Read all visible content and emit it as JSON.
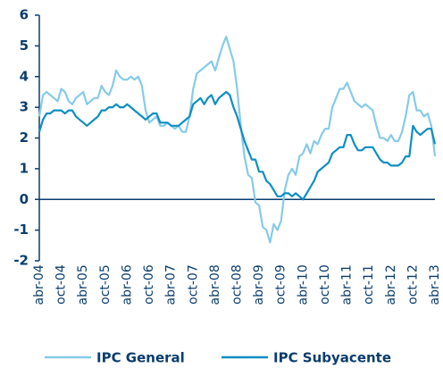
{
  "chart_data": {
    "type": "line",
    "categories": [
      "abr-04",
      null,
      null,
      null,
      null,
      null,
      "oct-04",
      null,
      null,
      null,
      null,
      null,
      "abr-05",
      null,
      null,
      null,
      null,
      null,
      "oct-05",
      null,
      null,
      null,
      null,
      null,
      "abr-06",
      null,
      null,
      null,
      null,
      null,
      "oct-06",
      null,
      null,
      null,
      null,
      null,
      "abr-07",
      null,
      null,
      null,
      null,
      null,
      "oct-07",
      null,
      null,
      null,
      null,
      null,
      "abr-08",
      null,
      null,
      null,
      null,
      null,
      "oct-08",
      null,
      null,
      null,
      null,
      null,
      "abr-09",
      null,
      null,
      null,
      null,
      null,
      "oct-09",
      null,
      null,
      null,
      null,
      null,
      "abr-10",
      null,
      null,
      null,
      null,
      null,
      "oct-10",
      null,
      null,
      null,
      null,
      null,
      "abr-11",
      null,
      null,
      null,
      null,
      null,
      "oct-11",
      null,
      null,
      null,
      null,
      null,
      "abr-12",
      null,
      null,
      null,
      null,
      null,
      "oct-12",
      null,
      null,
      null,
      null,
      null,
      "abr-13"
    ],
    "series": [
      {
        "name": "IPC General",
        "color": "#86cbe8",
        "values": [
          2.7,
          3.4,
          3.5,
          3.4,
          3.3,
          3.2,
          3.6,
          3.5,
          3.2,
          3.1,
          3.3,
          3.4,
          3.5,
          3.1,
          3.2,
          3.3,
          3.3,
          3.7,
          3.5,
          3.4,
          3.7,
          4.2,
          4.0,
          3.9,
          3.9,
          4.0,
          3.9,
          4.0,
          3.7,
          2.9,
          2.5,
          2.6,
          2.7,
          2.4,
          2.4,
          2.5,
          2.4,
          2.3,
          2.4,
          2.2,
          2.2,
          2.7,
          3.6,
          4.1,
          4.2,
          4.3,
          4.4,
          4.5,
          4.2,
          4.6,
          5.0,
          5.3,
          4.9,
          4.5,
          3.6,
          2.4,
          1.4,
          0.8,
          0.7,
          -0.1,
          -0.2,
          -0.9,
          -1.0,
          -1.4,
          -0.8,
          -1.0,
          -0.7,
          0.3,
          0.8,
          1.0,
          0.8,
          1.4,
          1.5,
          1.8,
          1.5,
          1.9,
          1.8,
          2.1,
          2.3,
          2.3,
          3.0,
          3.3,
          3.6,
          3.6,
          3.8,
          3.5,
          3.2,
          3.1,
          3.0,
          3.1,
          3.0,
          2.9,
          2.4,
          2.0,
          2.0,
          1.9,
          2.1,
          1.9,
          1.9,
          2.2,
          2.7,
          3.4,
          3.5,
          2.9,
          2.9,
          2.7,
          2.8,
          2.4,
          1.4
        ]
      },
      {
        "name": "IPC Subyacente",
        "color": "#0d8fc2",
        "values": [
          2.2,
          2.6,
          2.8,
          2.8,
          2.9,
          2.9,
          2.9,
          2.8,
          2.9,
          2.9,
          2.7,
          2.6,
          2.5,
          2.4,
          2.5,
          2.6,
          2.7,
          2.9,
          2.9,
          3.0,
          3.0,
          3.1,
          3.0,
          3.0,
          3.1,
          3.0,
          2.9,
          2.8,
          2.7,
          2.6,
          2.7,
          2.8,
          2.8,
          2.5,
          2.5,
          2.5,
          2.4,
          2.4,
          2.4,
          2.5,
          2.6,
          2.7,
          3.1,
          3.2,
          3.3,
          3.1,
          3.3,
          3.4,
          3.1,
          3.3,
          3.4,
          3.5,
          3.4,
          3.0,
          2.7,
          2.3,
          1.9,
          1.6,
          1.3,
          1.3,
          0.9,
          0.9,
          0.6,
          0.5,
          0.3,
          0.1,
          0.1,
          0.2,
          0.2,
          0.1,
          0.2,
          0.1,
          0.0,
          0.2,
          0.4,
          0.6,
          0.9,
          1.0,
          1.1,
          1.2,
          1.5,
          1.6,
          1.7,
          1.7,
          2.1,
          2.1,
          1.8,
          1.6,
          1.6,
          1.7,
          1.7,
          1.7,
          1.5,
          1.3,
          1.2,
          1.2,
          1.1,
          1.1,
          1.1,
          1.2,
          1.4,
          1.4,
          2.4,
          2.2,
          2.1,
          2.2,
          2.3,
          2.3,
          1.8
        ]
      }
    ],
    "ylim": [
      -2,
      6
    ],
    "yticks": [
      -2,
      -1,
      0,
      1,
      2,
      3,
      4,
      5,
      6
    ],
    "grid": false,
    "legend": "bottom"
  }
}
